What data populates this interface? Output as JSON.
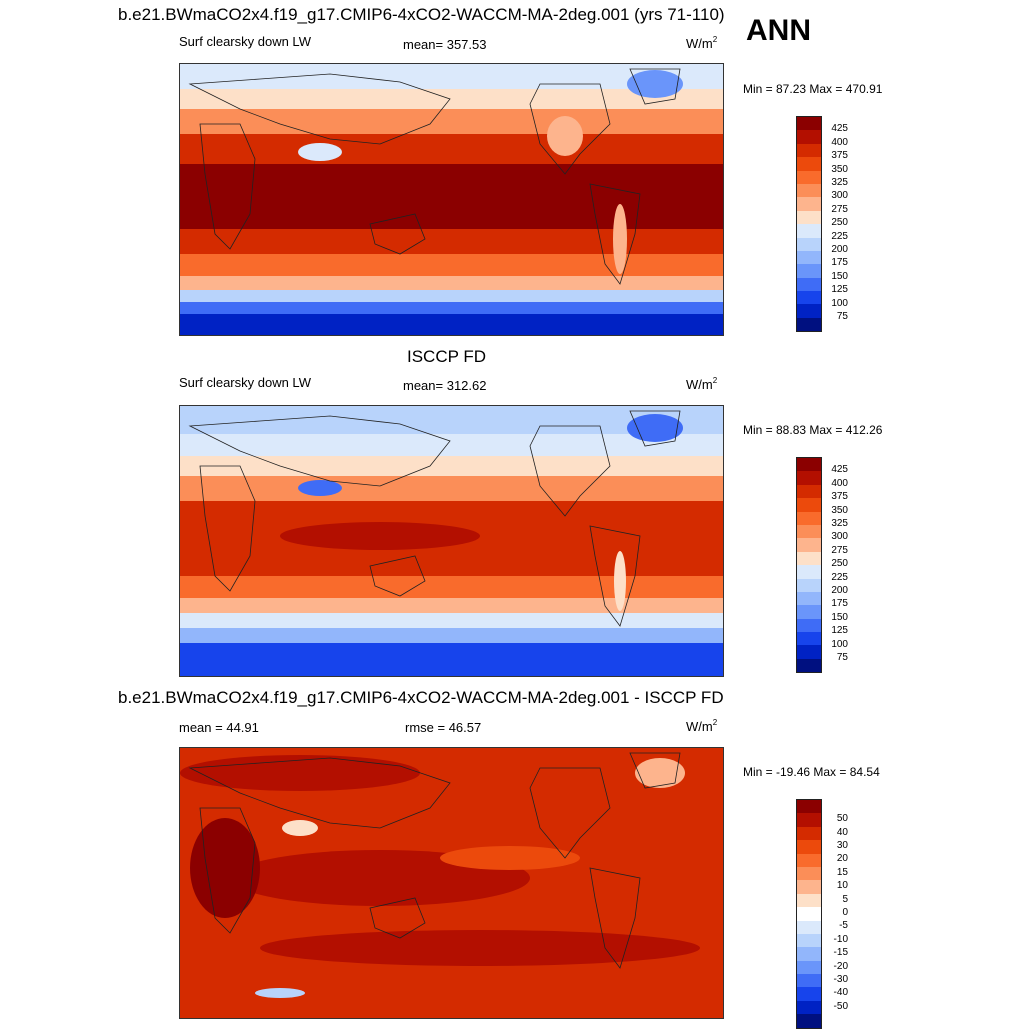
{
  "ann_label": "ANN",
  "panels": [
    {
      "title": "b.e21.BWmaCO2x4.f19_g17.CMIP6-4xCO2-WACCM-MA-2deg.001 (yrs 71-110)",
      "left_text": "Surf clearsky down LW",
      "center_text": "mean= 357.53",
      "units": "W/m",
      "units_exp": "2",
      "minmax": "Min =  87.23 Max = 470.91",
      "colorbar": {
        "colors": [
          "#8b0000",
          "#b30f00",
          "#d42b00",
          "#ec4a0c",
          "#f96b2c",
          "#fb8e58",
          "#fdb48d",
          "#fde0c8",
          "#dbe9fb",
          "#b8d3fb",
          "#92b6fb",
          "#6a95fa",
          "#3f6cf6",
          "#1744ec",
          "#0022c4",
          "#001080"
        ],
        "labels": [
          "425",
          "400",
          "375",
          "350",
          "325",
          "300",
          "275",
          "250",
          "225",
          "200",
          "175",
          "150",
          "125",
          "100",
          "75"
        ]
      }
    },
    {
      "title": "ISCCP FD",
      "left_text": "Surf clearsky down LW",
      "center_text": "mean= 312.62",
      "units": "W/m",
      "units_exp": "2",
      "minmax": "Min =  88.83 Max = 412.26",
      "colorbar": {
        "colors": [
          "#8b0000",
          "#b30f00",
          "#d42b00",
          "#ec4a0c",
          "#f96b2c",
          "#fb8e58",
          "#fdb48d",
          "#fde0c8",
          "#dbe9fb",
          "#b8d3fb",
          "#92b6fb",
          "#6a95fa",
          "#3f6cf6",
          "#1744ec",
          "#0022c4",
          "#001080"
        ],
        "labels": [
          "425",
          "400",
          "375",
          "350",
          "325",
          "300",
          "275",
          "250",
          "225",
          "200",
          "175",
          "150",
          "125",
          "100",
          "75"
        ]
      }
    },
    {
      "title": "b.e21.BWmaCO2x4.f19_g17.CMIP6-4xCO2-WACCM-MA-2deg.001 - ISCCP FD",
      "left_text": "mean =  44.91",
      "center_text": "rmse =  46.57",
      "units": "W/m",
      "units_exp": "2",
      "minmax": "Min = -19.46 Max =  84.54",
      "colorbar": {
        "colors": [
          "#8b0000",
          "#b30f00",
          "#d42b00",
          "#ec4a0c",
          "#f96b2c",
          "#fb8e58",
          "#fdb48d",
          "#fde0c8",
          "#ffffff",
          "#dbe9fb",
          "#b8d3fb",
          "#92b6fb",
          "#6a95fa",
          "#3f6cf6",
          "#1744ec",
          "#0022c4",
          "#001080"
        ],
        "labels": [
          "50",
          "40",
          "30",
          "20",
          "15",
          "10",
          "5",
          "0",
          "-5",
          "-10",
          "-15",
          "-20",
          "-30",
          "-40",
          "-50"
        ]
      }
    }
  ]
}
